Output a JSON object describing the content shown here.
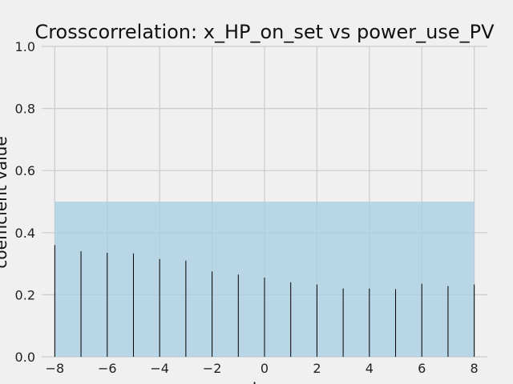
{
  "chart_data": {
    "type": "bar",
    "title": "Crosscorrelation: x_HP_on_set vs power_use_PV",
    "xlabel": "lag",
    "ylabel": "coefficient value",
    "xlim": [
      -8.5,
      8.5
    ],
    "ylim": [
      0.0,
      1.0
    ],
    "xticks": [
      "−8",
      "−6",
      "−4",
      "−2",
      "0",
      "2",
      "4",
      "6",
      "8"
    ],
    "yticks": [
      "0.0",
      "0.2",
      "0.4",
      "0.6",
      "0.8",
      "1.0"
    ],
    "grid": true,
    "x": [
      -8,
      -7,
      -6,
      -5,
      -4,
      -3,
      -2,
      -1,
      0,
      1,
      2,
      3,
      4,
      5,
      6,
      7,
      8
    ],
    "values": [
      0.36,
      0.34,
      0.335,
      0.333,
      0.315,
      0.31,
      0.275,
      0.265,
      0.255,
      0.24,
      0.233,
      0.22,
      0.22,
      0.218,
      0.235,
      0.228,
      0.233
    ],
    "confidence_band": {
      "x_start": -8,
      "x_end": 8,
      "y_low": 0.0,
      "y_high": 0.5
    },
    "colors": {
      "background": "#f0f0f0",
      "grid": "#cbcbcb",
      "bars": "#000000",
      "band": "#a6cee3"
    }
  }
}
